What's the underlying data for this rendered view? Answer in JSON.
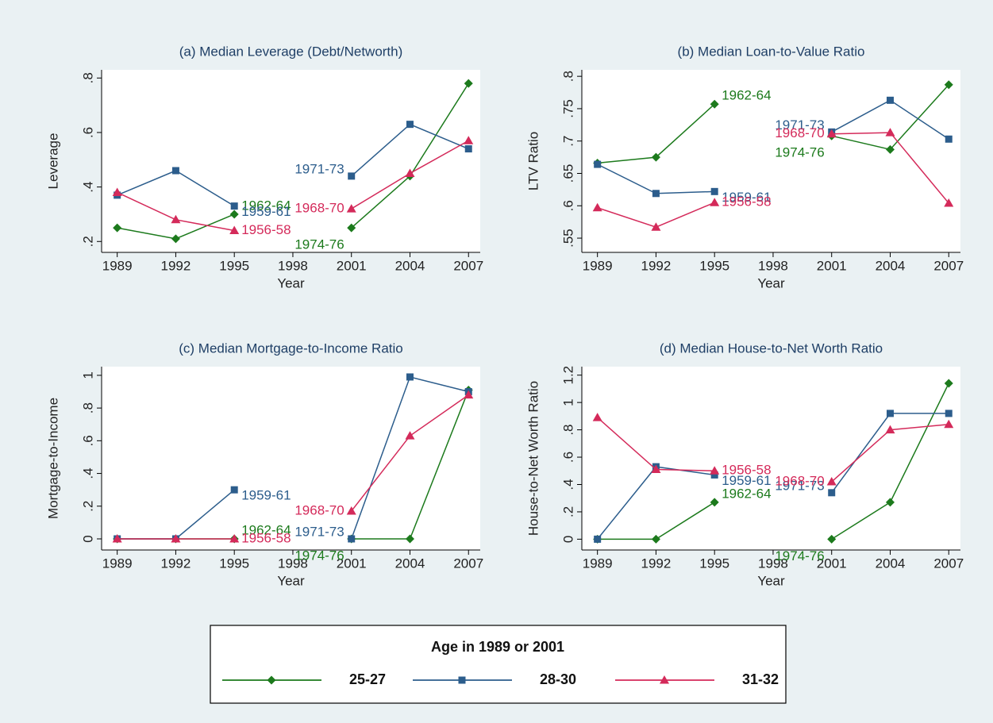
{
  "chart_data": [
    {
      "type": "line",
      "title": "(a) Median Leverage (Debt/Networth)",
      "xlabel": "Year",
      "ylabel": "Leverage",
      "x": [
        1989,
        1992,
        1995,
        1998,
        2001,
        2004,
        2007
      ],
      "xlim": [
        1988.2,
        2007.6
      ],
      "xticks": [
        1989,
        1992,
        1995,
        1998,
        2001,
        2004,
        2007
      ],
      "ylim": [
        0.16,
        0.83
      ],
      "yticks": [
        {
          "value": 0.2,
          "label": ".2"
        },
        {
          "value": 0.4,
          "label": ".4"
        },
        {
          "value": 0.6,
          "label": ".6"
        },
        {
          "value": 0.8,
          "label": ".8"
        }
      ],
      "series": [
        {
          "values": [
            0.25,
            0.21,
            0.3,
            null,
            0.25,
            0.44,
            0.78
          ],
          "cohorts": [
            "1962-64",
            "1974-76"
          ]
        },
        {
          "values": [
            0.37,
            0.46,
            0.33,
            null,
            0.44,
            0.63,
            0.54
          ],
          "cohorts": [
            "1959-61",
            "1971-73"
          ]
        },
        {
          "values": [
            0.38,
            0.28,
            0.24,
            null,
            0.32,
            0.45,
            0.57
          ],
          "cohorts": [
            "1956-58",
            "1968-70"
          ]
        }
      ]
    },
    {
      "type": "line",
      "title": "(b) Median Loan-to-Value Ratio",
      "xlabel": "Year",
      "ylabel": "LTV Ratio",
      "x": [
        1989,
        1992,
        1995,
        1998,
        2001,
        2004,
        2007
      ],
      "xlim": [
        1988.2,
        2007.6
      ],
      "xticks": [
        1989,
        1992,
        1995,
        1998,
        2001,
        2004,
        2007
      ],
      "ylim": [
        0.528,
        0.81
      ],
      "yticks": [
        {
          "value": 0.55,
          "label": ".55"
        },
        {
          "value": 0.6,
          "label": ".6"
        },
        {
          "value": 0.65,
          "label": ".65"
        },
        {
          "value": 0.7,
          "label": ".7"
        },
        {
          "value": 0.75,
          "label": ".75"
        },
        {
          "value": 0.8,
          "label": ".8"
        }
      ],
      "series": [
        {
          "values": [
            0.666,
            0.675,
            0.757,
            null,
            0.708,
            0.687,
            0.787
          ],
          "cohorts": [
            "1962-64",
            "1974-76"
          ]
        },
        {
          "values": [
            0.664,
            0.619,
            0.622,
            null,
            0.714,
            0.763,
            0.703
          ],
          "cohorts": [
            "1959-61",
            "1971-73"
          ]
        },
        {
          "values": [
            0.597,
            0.567,
            0.605,
            null,
            0.711,
            0.713,
            0.604
          ],
          "cohorts": [
            "1956-58",
            "1968-70"
          ]
        }
      ]
    },
    {
      "type": "line",
      "title": "(c) Median Mortgage-to-Income Ratio",
      "xlabel": "Year",
      "ylabel": "Mortgage-to-Income",
      "x": [
        1989,
        1992,
        1995,
        1998,
        2001,
        2004,
        2007
      ],
      "xlim": [
        1988.2,
        2007.6
      ],
      "xticks": [
        1989,
        1992,
        1995,
        1998,
        2001,
        2004,
        2007
      ],
      "ylim": [
        -0.068,
        1.053
      ],
      "yticks": [
        0,
        {
          "value": 0.2,
          "label": ".2"
        },
        {
          "value": 0.4,
          "label": ".4"
        },
        {
          "value": 0.6,
          "label": ".6"
        },
        {
          "value": 0.8,
          "label": ".8"
        },
        1
      ],
      "series": [
        {
          "values": [
            0,
            0,
            0,
            null,
            0,
            0,
            0.91
          ],
          "cohorts": [
            "1962-64",
            "1974-76"
          ]
        },
        {
          "values": [
            0,
            0,
            0.3,
            null,
            0,
            0.99,
            0.9
          ],
          "cohorts": [
            "1959-61",
            "1971-73"
          ]
        },
        {
          "values": [
            0,
            0,
            0,
            null,
            0.17,
            0.63,
            0.88
          ],
          "cohorts": [
            "1956-58",
            "1968-70"
          ]
        }
      ]
    },
    {
      "type": "line",
      "title": "(d) Median House-to-Net Worth Ratio",
      "xlabel": "Year",
      "ylabel": "House-to-Net Worth Ratio",
      "x": [
        1989,
        1992,
        1995,
        1998,
        2001,
        2004,
        2007
      ],
      "xlim": [
        1988.2,
        2007.6
      ],
      "xticks": [
        1989,
        1992,
        1995,
        1998,
        2001,
        2004,
        2007
      ],
      "ylim": [
        -0.079,
        1.262
      ],
      "yticks": [
        0,
        {
          "value": 0.2,
          "label": ".2"
        },
        {
          "value": 0.4,
          "label": ".4"
        },
        {
          "value": 0.6,
          "label": ".6"
        },
        {
          "value": 0.8,
          "label": ".8"
        },
        1,
        1.2
      ],
      "series": [
        {
          "values": [
            0,
            0,
            0.27,
            null,
            0,
            0.27,
            1.14
          ],
          "cohorts": [
            "1962-64",
            "1974-76"
          ]
        },
        {
          "values": [
            0,
            0.53,
            0.47,
            null,
            0.34,
            0.92,
            0.92
          ],
          "cohorts": [
            "1959-61",
            "1971-73"
          ]
        },
        {
          "values": [
            0.89,
            0.51,
            0.5,
            null,
            0.42,
            0.8,
            0.84
          ],
          "cohorts": [
            "1956-58",
            "1968-70"
          ]
        }
      ]
    }
  ],
  "legend": {
    "title": "Age in 1989 or 2001",
    "series": [
      {
        "name": "25-27",
        "color": "#1c7a1c",
        "marker": "diamond"
      },
      {
        "name": "28-30",
        "color": "#2c5d8c",
        "marker": "square"
      },
      {
        "name": "31-32",
        "color": "#d42a5a",
        "marker": "triangle"
      }
    ]
  }
}
